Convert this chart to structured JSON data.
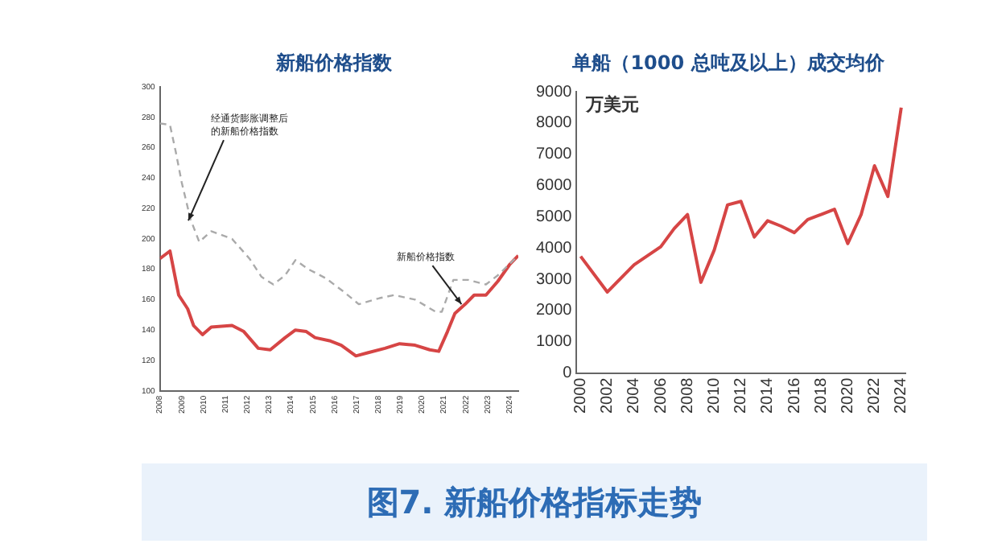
{
  "chart_data": [
    {
      "type": "line",
      "title": "新船价格指数",
      "xlim": [
        2008,
        2024.4
      ],
      "xticks": [
        2008,
        2009,
        2010,
        2011,
        2012,
        2013,
        2014,
        2015,
        2016,
        2017,
        2018,
        2019,
        2020,
        2021,
        2022,
        2023,
        2024
      ],
      "ylim": [
        100,
        300
      ],
      "yticks": [
        100,
        120,
        140,
        160,
        180,
        200,
        220,
        240,
        260,
        280,
        300
      ],
      "grid": false,
      "legend": false,
      "marker": "none",
      "series": [
        {
          "color": "#aaaaaa",
          "line_style": "dashed",
          "x": [
            2008,
            2008.46,
            2008.73,
            2009,
            2009.4,
            2009.8,
            2010.35,
            2011.3,
            2012.1,
            2012.65,
            2013.19,
            2013.73,
            2014.2,
            2014.8,
            2015.6,
            2016.43,
            2017.1,
            2018.05,
            2018.73,
            2019.68,
            2020.62,
            2020.9,
            2021.43,
            2022.1,
            2022.92,
            2023.46,
            2024.4
          ],
          "values": [
            276,
            275,
            257,
            237,
            213,
            198,
            205,
            200,
            187,
            175,
            170,
            176,
            186,
            180,
            174,
            165,
            157,
            161,
            163,
            160,
            152,
            152,
            173,
            173,
            170,
            176,
            189
          ]
        },
        {
          "color": "#d64545",
          "line_style": "solid",
          "x": [
            2008,
            2008.46,
            2008.86,
            2009.27,
            2009.54,
            2009.95,
            2010.35,
            2011.3,
            2011.84,
            2012.5,
            2013.05,
            2013.73,
            2014.2,
            2014.7,
            2015.1,
            2015.76,
            2016.3,
            2016.97,
            2017.5,
            2018.3,
            2018.97,
            2019.68,
            2020.35,
            2020.76,
            2021.16,
            2021.5,
            2021.97,
            2022.38,
            2022.92,
            2023.46,
            2024,
            2024.4
          ],
          "values": [
            187,
            192,
            163,
            154,
            143,
            137,
            142,
            143,
            139,
            128,
            127,
            135,
            140,
            139,
            135,
            133,
            130,
            123,
            125,
            128,
            131,
            130,
            127,
            126,
            139,
            151,
            157,
            163,
            163,
            172,
            183,
            189
          ]
        }
      ],
      "annotations": [
        {
          "text": "经通货膨胀调整后的新船价格指数",
          "x": 2009.3,
          "y": 212
        },
        {
          "text": "新船价格指数",
          "x": 2021.8,
          "y": 157
        }
      ]
    },
    {
      "type": "line",
      "title": "单船（1000 总吨及以上）成交均价",
      "ylabel": "万美元",
      "xlim": [
        1999.7,
        2024.3
      ],
      "xticks": [
        2000,
        2002,
        2004,
        2006,
        2008,
        2010,
        2012,
        2014,
        2016,
        2018,
        2020,
        2022,
        2024
      ],
      "ylim": [
        0,
        9000
      ],
      "yticks": [
        0,
        1000,
        2000,
        3000,
        4000,
        5000,
        6000,
        7000,
        8000,
        9000
      ],
      "grid": false,
      "legend": false,
      "marker": "none",
      "series": [
        {
          "color": "#d64545",
          "line_style": "solid",
          "x": [
            2000,
            2002,
            2004,
            2006,
            2007,
            2008,
            2009,
            2010,
            2011,
            2012,
            2013,
            2014,
            2015,
            2016,
            2017,
            2018,
            2019,
            2020,
            2021,
            2022,
            2023,
            2024
          ],
          "values": [
            3730,
            2590,
            3460,
            4040,
            4620,
            5070,
            2900,
            3930,
            5380,
            5490,
            4350,
            4870,
            4700,
            4490,
            4910,
            5070,
            5240,
            4140,
            5070,
            6630,
            5650,
            8490
          ]
        }
      ],
      "annotations": [
        "图7. 新船价格指标走势"
      ]
    }
  ]
}
